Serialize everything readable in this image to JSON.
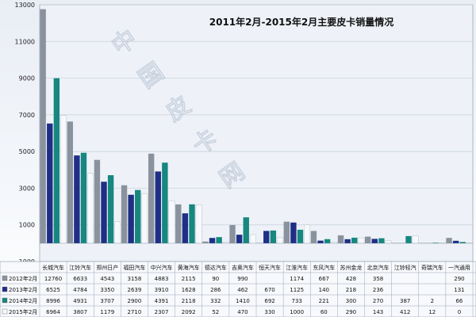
{
  "chart_data": {
    "type": "bar",
    "title": "2011年2月-2015年2月主要皮卡销量情况",
    "xlabel": "",
    "ylabel": "",
    "ylim": [
      -1000,
      13000
    ],
    "yticks": [
      -1000,
      1000,
      3000,
      5000,
      7000,
      9000,
      11000,
      13000
    ],
    "grid": true,
    "legend_position": "table-below",
    "watermark": "中国皮卡网",
    "categories": [
      "长城汽车",
      "江铃汽车",
      "郑州日产",
      "福田汽车",
      "中兴汽车",
      "黄海汽车",
      "德达汽车",
      "吉奥汽车",
      "恒天汽车",
      "江淮汽车",
      "东风汽车",
      "苏州金龙",
      "北京汽车",
      "江铃轻汽",
      "奇瑞汽车",
      "一汽通用"
    ],
    "series": [
      {
        "name": "2012年2月",
        "color": "#8a939d",
        "values": [
          12760,
          6633,
          4543,
          3158,
          4883,
          2115,
          90,
          990,
          null,
          1174,
          667,
          428,
          358,
          null,
          null,
          290
        ]
      },
      {
        "name": "2013年2月",
        "color": "#1f2f86",
        "values": [
          6525,
          4784,
          3350,
          2639,
          3910,
          1628,
          286,
          462,
          670,
          1125,
          140,
          218,
          236,
          null,
          null,
          131
        ]
      },
      {
        "name": "2014年2月",
        "color": "#17877f",
        "values": [
          8996,
          4931,
          3707,
          2900,
          4391,
          2118,
          332,
          1410,
          692,
          733,
          221,
          300,
          270,
          387,
          2,
          66
        ]
      },
      {
        "name": "2015年2月",
        "color": "#f6f8fb",
        "values": [
          6964,
          3807,
          1179,
          2710,
          2307,
          2092,
          52,
          470,
          330,
          1000,
          60,
          290,
          143,
          412,
          12,
          0
        ]
      }
    ],
    "table_rows": [
      [
        "12760",
        "6633",
        "4543",
        "3158",
        "4883",
        "2115",
        "90",
        "990",
        "",
        "1174",
        "667",
        "428",
        "358",
        "",
        "",
        "290"
      ],
      [
        "6525",
        "4784",
        "3350",
        "2639",
        "3910",
        "1628",
        "286",
        "462",
        "670",
        "1125",
        "140",
        "218",
        "236",
        "",
        "",
        "131"
      ],
      [
        "8996",
        "4931",
        "3707",
        "2900",
        "4391",
        "2118",
        "332",
        "1410",
        "692",
        "733",
        "221",
        "300",
        "270",
        "387",
        "2",
        "66"
      ],
      [
        "6964",
        "3807",
        "1179",
        "2710",
        "2307",
        "2092",
        "52",
        "470",
        "330",
        "1000",
        "60",
        "290",
        "143",
        "412",
        "12",
        "0"
      ]
    ]
  }
}
